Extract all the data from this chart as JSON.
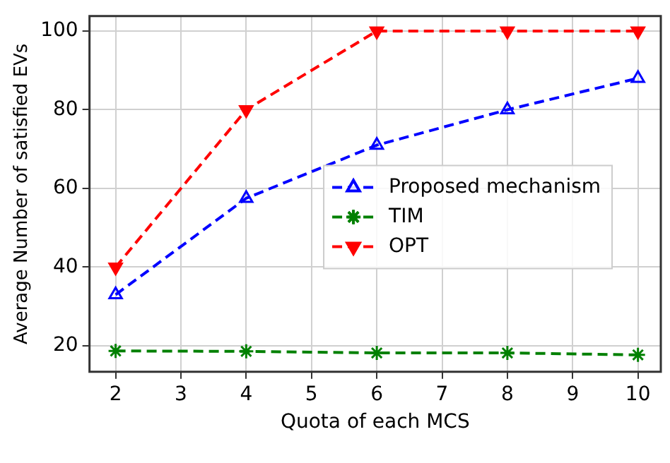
{
  "chart_data": {
    "type": "line",
    "xlabel": "Quota of each MCS",
    "ylabel": "Average Number of satisfied EVs",
    "x": [
      2,
      4,
      6,
      8,
      10
    ],
    "series": [
      {
        "name": "Proposed mechanism",
        "color": "#0000ff",
        "values": [
          33,
          57.5,
          71,
          80,
          88
        ],
        "marker": "triangle"
      },
      {
        "name": "TIM",
        "color": "#008000",
        "values": [
          18.7,
          18.6,
          18.2,
          18.2,
          17.7
        ],
        "marker": "cross"
      },
      {
        "name": "OPT",
        "color": "#ff0000",
        "values": [
          40,
          80,
          100,
          100,
          100
        ],
        "marker": "triangle"
      }
    ],
    "xlim": [
      1.6,
      10.35
    ],
    "xticks": [
      2,
      3,
      4,
      5,
      6,
      7,
      8,
      9,
      10
    ],
    "ylim": [
      13.4,
      103.8
    ],
    "yticks": [
      20,
      40,
      60,
      80,
      100
    ],
    "grid": true,
    "legend": "right",
    "line_style": "dashed"
  }
}
